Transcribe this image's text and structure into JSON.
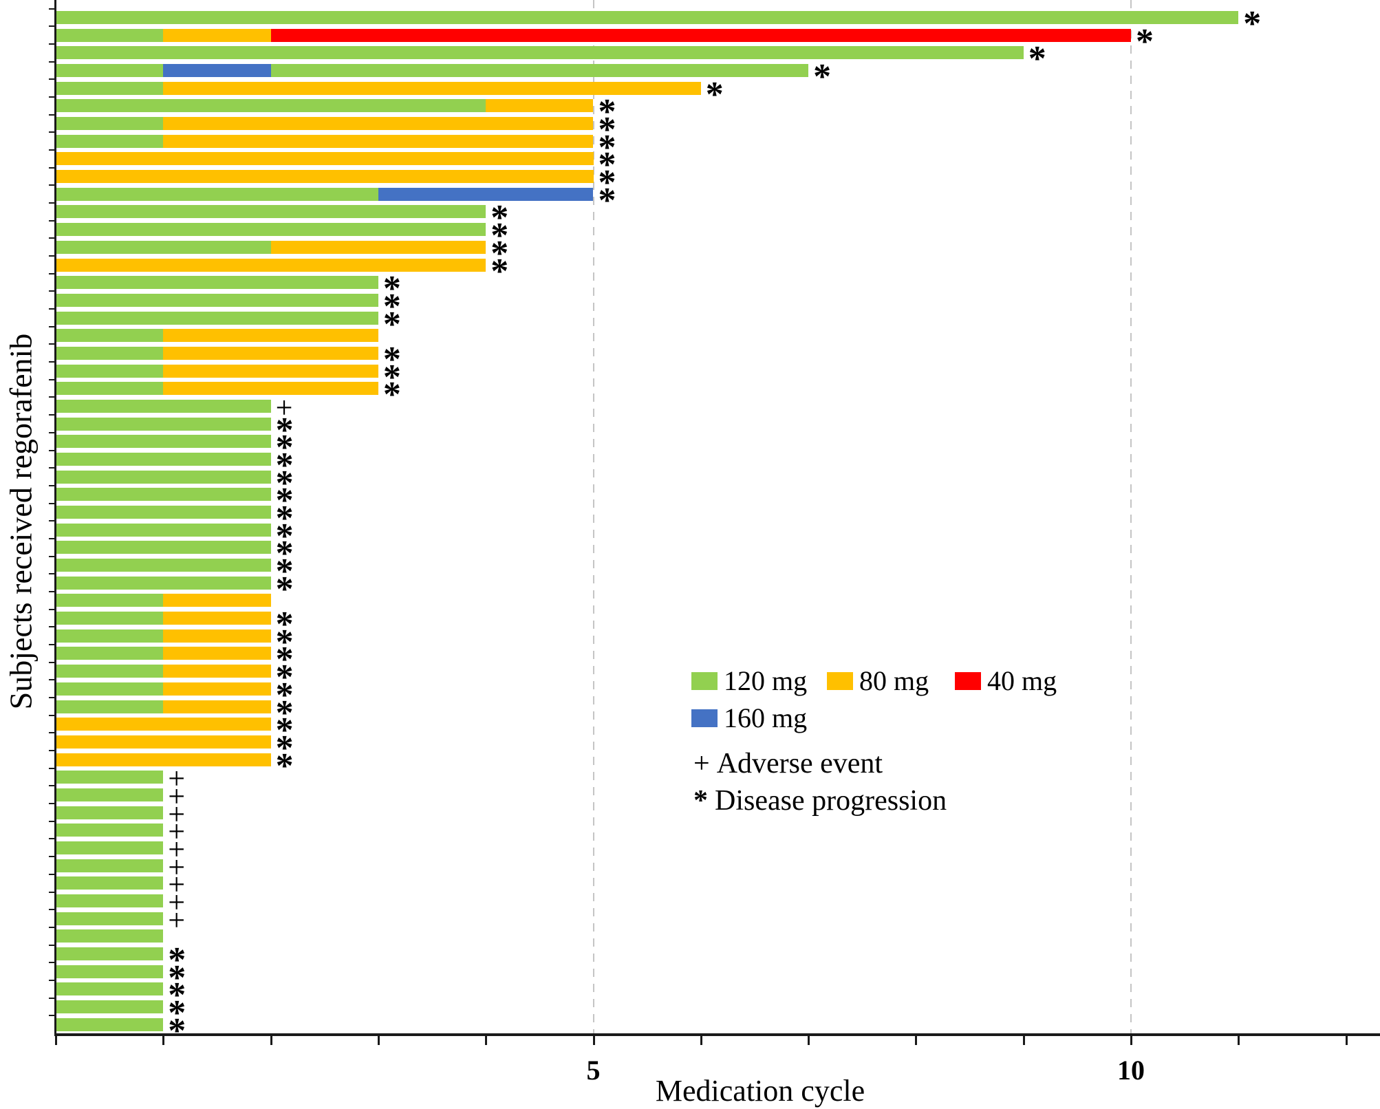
{
  "figure": {
    "background": "#FFFFFF"
  },
  "chart_data": {
    "type": "bar",
    "variant": "horizontal-stacked-swimmer",
    "title": "",
    "xlabel": "Medication cycle",
    "ylabel": "Subjects received regorafenib",
    "xlim": [
      0,
      12.3
    ],
    "x_minor_tick_step": 1,
    "x_major_ticks": [
      {
        "value": 5,
        "label": "5"
      },
      {
        "value": 10,
        "label": "10"
      }
    ],
    "gridlines_at_values": [
      5,
      10
    ],
    "grid_color": "#C4C4C4",
    "axis_color": "#1A1A1A",
    "legend": {
      "items": [
        {
          "key": "120",
          "label": "120 mg",
          "color": "#92D050"
        },
        {
          "key": "80",
          "label": "80 mg",
          "color": "#FFC000"
        },
        {
          "key": "40",
          "label": "40 mg",
          "color": "#FF0000"
        },
        {
          "key": "160",
          "label": "160 mg",
          "color": "#4472C4"
        }
      ]
    },
    "marker_legend": [
      {
        "symbol": "+",
        "label": "Adverse event"
      },
      {
        "symbol": "*",
        "label": "Disease progression"
      }
    ],
    "subjects": [
      {
        "segments": [
          {
            "dose": "120",
            "cycles": 11
          }
        ],
        "marker": "*"
      },
      {
        "segments": [
          {
            "dose": "120",
            "cycles": 1
          },
          {
            "dose": "80",
            "cycles": 1
          },
          {
            "dose": "40",
            "cycles": 8
          }
        ],
        "marker": "*"
      },
      {
        "segments": [
          {
            "dose": "120",
            "cycles": 9
          }
        ],
        "marker": "*"
      },
      {
        "segments": [
          {
            "dose": "120",
            "cycles": 1
          },
          {
            "dose": "160",
            "cycles": 1
          },
          {
            "dose": "120",
            "cycles": 5
          }
        ],
        "marker": "*"
      },
      {
        "segments": [
          {
            "dose": "120",
            "cycles": 1
          },
          {
            "dose": "80",
            "cycles": 5
          }
        ],
        "marker": "*"
      },
      {
        "segments": [
          {
            "dose": "120",
            "cycles": 4
          },
          {
            "dose": "80",
            "cycles": 1
          }
        ],
        "marker": "*"
      },
      {
        "segments": [
          {
            "dose": "120",
            "cycles": 1
          },
          {
            "dose": "80",
            "cycles": 4
          }
        ],
        "marker": "*"
      },
      {
        "segments": [
          {
            "dose": "120",
            "cycles": 1
          },
          {
            "dose": "80",
            "cycles": 4
          }
        ],
        "marker": "*"
      },
      {
        "segments": [
          {
            "dose": "80",
            "cycles": 5
          }
        ],
        "marker": "*"
      },
      {
        "segments": [
          {
            "dose": "80",
            "cycles": 5
          }
        ],
        "marker": "*"
      },
      {
        "segments": [
          {
            "dose": "120",
            "cycles": 3
          },
          {
            "dose": "160",
            "cycles": 2
          }
        ],
        "marker": "*"
      },
      {
        "segments": [
          {
            "dose": "120",
            "cycles": 4
          }
        ],
        "marker": "*"
      },
      {
        "segments": [
          {
            "dose": "120",
            "cycles": 4
          }
        ],
        "marker": "*"
      },
      {
        "segments": [
          {
            "dose": "120",
            "cycles": 2
          },
          {
            "dose": "80",
            "cycles": 2
          }
        ],
        "marker": "*"
      },
      {
        "segments": [
          {
            "dose": "80",
            "cycles": 4
          }
        ],
        "marker": "*"
      },
      {
        "segments": [
          {
            "dose": "120",
            "cycles": 3
          }
        ],
        "marker": "*"
      },
      {
        "segments": [
          {
            "dose": "120",
            "cycles": 3
          }
        ],
        "marker": "*"
      },
      {
        "segments": [
          {
            "dose": "120",
            "cycles": 3
          }
        ],
        "marker": "*"
      },
      {
        "segments": [
          {
            "dose": "120",
            "cycles": 1
          },
          {
            "dose": "80",
            "cycles": 2
          }
        ],
        "marker": ""
      },
      {
        "segments": [
          {
            "dose": "120",
            "cycles": 1
          },
          {
            "dose": "80",
            "cycles": 2
          }
        ],
        "marker": "*"
      },
      {
        "segments": [
          {
            "dose": "120",
            "cycles": 1
          },
          {
            "dose": "80",
            "cycles": 2
          }
        ],
        "marker": "*"
      },
      {
        "segments": [
          {
            "dose": "120",
            "cycles": 1
          },
          {
            "dose": "80",
            "cycles": 2
          }
        ],
        "marker": "*"
      },
      {
        "segments": [
          {
            "dose": "120",
            "cycles": 2
          }
        ],
        "marker": "+"
      },
      {
        "segments": [
          {
            "dose": "120",
            "cycles": 2
          }
        ],
        "marker": "*"
      },
      {
        "segments": [
          {
            "dose": "120",
            "cycles": 2
          }
        ],
        "marker": "*"
      },
      {
        "segments": [
          {
            "dose": "120",
            "cycles": 2
          }
        ],
        "marker": "*"
      },
      {
        "segments": [
          {
            "dose": "120",
            "cycles": 2
          }
        ],
        "marker": "*"
      },
      {
        "segments": [
          {
            "dose": "120",
            "cycles": 2
          }
        ],
        "marker": "*"
      },
      {
        "segments": [
          {
            "dose": "120",
            "cycles": 2
          }
        ],
        "marker": "*"
      },
      {
        "segments": [
          {
            "dose": "120",
            "cycles": 2
          }
        ],
        "marker": "*"
      },
      {
        "segments": [
          {
            "dose": "120",
            "cycles": 2
          }
        ],
        "marker": "*"
      },
      {
        "segments": [
          {
            "dose": "120",
            "cycles": 2
          }
        ],
        "marker": "*"
      },
      {
        "segments": [
          {
            "dose": "120",
            "cycles": 2
          }
        ],
        "marker": "*"
      },
      {
        "segments": [
          {
            "dose": "120",
            "cycles": 1
          },
          {
            "dose": "80",
            "cycles": 1
          }
        ],
        "marker": ""
      },
      {
        "segments": [
          {
            "dose": "120",
            "cycles": 1
          },
          {
            "dose": "80",
            "cycles": 1
          }
        ],
        "marker": "*"
      },
      {
        "segments": [
          {
            "dose": "120",
            "cycles": 1
          },
          {
            "dose": "80",
            "cycles": 1
          }
        ],
        "marker": "*"
      },
      {
        "segments": [
          {
            "dose": "120",
            "cycles": 1
          },
          {
            "dose": "80",
            "cycles": 1
          }
        ],
        "marker": "*"
      },
      {
        "segments": [
          {
            "dose": "120",
            "cycles": 1
          },
          {
            "dose": "80",
            "cycles": 1
          }
        ],
        "marker": "*"
      },
      {
        "segments": [
          {
            "dose": "120",
            "cycles": 1
          },
          {
            "dose": "80",
            "cycles": 1
          }
        ],
        "marker": "*"
      },
      {
        "segments": [
          {
            "dose": "120",
            "cycles": 1
          },
          {
            "dose": "80",
            "cycles": 1
          }
        ],
        "marker": "*"
      },
      {
        "segments": [
          {
            "dose": "80",
            "cycles": 2
          }
        ],
        "marker": "*"
      },
      {
        "segments": [
          {
            "dose": "80",
            "cycles": 2
          }
        ],
        "marker": "*"
      },
      {
        "segments": [
          {
            "dose": "80",
            "cycles": 2
          }
        ],
        "marker": "*"
      },
      {
        "segments": [
          {
            "dose": "120",
            "cycles": 1
          }
        ],
        "marker": "+"
      },
      {
        "segments": [
          {
            "dose": "120",
            "cycles": 1
          }
        ],
        "marker": "+"
      },
      {
        "segments": [
          {
            "dose": "120",
            "cycles": 1
          }
        ],
        "marker": "+"
      },
      {
        "segments": [
          {
            "dose": "120",
            "cycles": 1
          }
        ],
        "marker": "+"
      },
      {
        "segments": [
          {
            "dose": "120",
            "cycles": 1
          }
        ],
        "marker": "+"
      },
      {
        "segments": [
          {
            "dose": "120",
            "cycles": 1
          }
        ],
        "marker": "+"
      },
      {
        "segments": [
          {
            "dose": "120",
            "cycles": 1
          }
        ],
        "marker": "+"
      },
      {
        "segments": [
          {
            "dose": "120",
            "cycles": 1
          }
        ],
        "marker": "+"
      },
      {
        "segments": [
          {
            "dose": "120",
            "cycles": 1
          }
        ],
        "marker": "+"
      },
      {
        "segments": [
          {
            "dose": "120",
            "cycles": 1
          }
        ],
        "marker": ""
      },
      {
        "segments": [
          {
            "dose": "120",
            "cycles": 1
          }
        ],
        "marker": "*"
      },
      {
        "segments": [
          {
            "dose": "120",
            "cycles": 1
          }
        ],
        "marker": "*"
      },
      {
        "segments": [
          {
            "dose": "120",
            "cycles": 1
          }
        ],
        "marker": "*"
      },
      {
        "segments": [
          {
            "dose": "120",
            "cycles": 1
          }
        ],
        "marker": "*"
      },
      {
        "segments": [
          {
            "dose": "120",
            "cycles": 1
          }
        ],
        "marker": "*"
      }
    ]
  }
}
